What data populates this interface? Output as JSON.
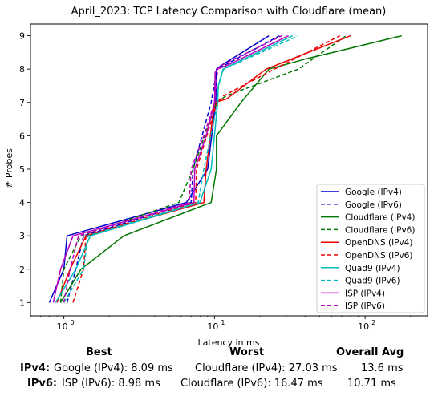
{
  "chart_data": {
    "type": "line",
    "title": "April_2023: TCP Latency Comparison with Cloudflare (mean)",
    "xlabel": "Latency in ms",
    "ylabel": "# Probes",
    "xscale": "log",
    "xlim": [
      0.6,
      260
    ],
    "ylim": [
      0.6,
      9.35
    ],
    "xticks": [
      {
        "value": 1,
        "label": "10",
        "sup": "0"
      },
      {
        "value": 10,
        "label": "10",
        "sup": "1"
      },
      {
        "value": 100,
        "label": "10",
        "sup": "2"
      }
    ],
    "yticks": [
      "1",
      "2",
      "3",
      "4",
      "5",
      "6",
      "7",
      "8",
      "9"
    ],
    "legend_position": "lower-right",
    "series": [
      {
        "name": "Google (IPv4)",
        "color": "#0000cc",
        "dash": "solid",
        "x": [
          0.8,
          1.0,
          1.05,
          6.5,
          9.0,
          10.2,
          10.3,
          11.0,
          23.0
        ],
        "y": [
          1,
          2,
          3,
          4,
          5,
          7,
          8,
          8.1,
          9
        ]
      },
      {
        "name": "Google (IPv6)",
        "color": "#0000cc",
        "dash": "dashed",
        "x": [
          1.05,
          1.2,
          1.35,
          7.0,
          7.2,
          9.5,
          10.4,
          11.5,
          27.0
        ],
        "y": [
          1,
          2,
          3,
          4,
          5,
          7,
          8,
          8.1,
          9
        ]
      },
      {
        "name": "Cloudflare (IPv4)",
        "color": "#007700",
        "dash": "solid",
        "x": [
          0.95,
          1.3,
          2.5,
          9.5,
          10.3,
          10.3,
          15.0,
          23.0,
          40.0,
          175.0
        ],
        "y": [
          1,
          2,
          3,
          4,
          5,
          6,
          7,
          8,
          8.3,
          9
        ]
      },
      {
        "name": "Cloudflare (IPv6)",
        "color": "#007700",
        "dash": "dashed",
        "x": [
          0.95,
          1.0,
          1.3,
          5.8,
          7.2,
          10.3,
          12.0,
          36.0,
          75.0
        ],
        "y": [
          1,
          2,
          3,
          4,
          5,
          7,
          7.2,
          8,
          9
        ]
      },
      {
        "name": "OpenDNS (IPv4)",
        "color": "#ee0000",
        "dash": "solid",
        "x": [
          0.9,
          1.1,
          1.4,
          8.5,
          8.8,
          10.0,
          12.0,
          22.0,
          80.0
        ],
        "y": [
          1,
          2,
          3,
          4,
          5,
          7,
          7.1,
          8,
          9
        ]
      },
      {
        "name": "OpenDNS (IPv6)",
        "color": "#ee0000",
        "dash": "dashed",
        "x": [
          1.15,
          1.35,
          1.4,
          7.5,
          7.6,
          10.4,
          11.5,
          25.0,
          68.0
        ],
        "y": [
          1,
          2,
          3,
          4,
          5,
          7,
          7.2,
          8,
          9
        ]
      },
      {
        "name": "Quad9 (IPv4)",
        "color": "#00bbbb",
        "dash": "solid",
        "x": [
          0.88,
          1.2,
          1.5,
          8.0,
          9.5,
          10.5,
          10.6,
          11.4,
          33.0
        ],
        "y": [
          1,
          2,
          3,
          4,
          5,
          7,
          7.5,
          8,
          9
        ]
      },
      {
        "name": "Quad9 (IPv6)",
        "color": "#00bbbb",
        "dash": "dashed",
        "x": [
          1.0,
          1.35,
          1.45,
          7.8,
          8.5,
          10.5,
          10.6,
          11.5,
          36.0
        ],
        "y": [
          1,
          2,
          3,
          4,
          5,
          7,
          7.5,
          8,
          9
        ]
      },
      {
        "name": "ISP (IPv4)",
        "color": "#bb00bb",
        "dash": "solid",
        "x": [
          0.85,
          0.95,
          1.15,
          7.3,
          7.4,
          8.8,
          10.0,
          10.1,
          10.4,
          12.0,
          31.0
        ],
        "y": [
          1,
          2,
          3,
          4,
          5,
          6,
          7,
          7.9,
          8,
          8.1,
          9
        ]
      },
      {
        "name": "ISP (IPv6)",
        "color": "#bb00bb",
        "dash": "dashed",
        "x": [
          1.0,
          1.1,
          1.25,
          6.8,
          7.0,
          8.5,
          10.0,
          10.5,
          11.0,
          28.0
        ],
        "y": [
          1,
          2,
          3,
          4,
          5,
          6,
          7,
          8,
          8.1,
          9
        ]
      }
    ]
  },
  "summary": {
    "headers": {
      "best": "Best",
      "worst": "Worst",
      "avg": "Overall Avg"
    },
    "rows": [
      {
        "label": "IPv4",
        "sep": ":",
        "best": "Google (IPv4): 8.09 ms",
        "worst": "Cloudflare (IPv4): 27.03 ms",
        "avg": "13.6 ms"
      },
      {
        "label": "IPv6",
        "sep": ":",
        "best": "ISP (IPv6): 8.98 ms",
        "worst": "Cloudflare (IPv6): 16.47 ms",
        "avg": "10.71 ms"
      }
    ]
  }
}
